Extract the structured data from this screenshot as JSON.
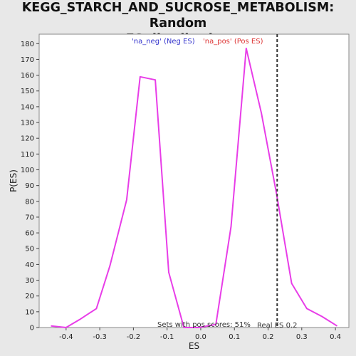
{
  "chart_data": {
    "type": "line",
    "title": "KEGG_STARCH_AND_SUCROSE_METABOLISM: Random ES distribution",
    "title_lines": [
      "KEGG_STARCH_AND_SUCROSE_METABOLISM: Random",
      "ES distribution"
    ],
    "xlabel": "ES",
    "ylabel": "P(ES)",
    "xlim": [
      -0.48,
      0.44
    ],
    "ylim": [
      0,
      186
    ],
    "xticks": [
      -0.4,
      -0.3,
      -0.2,
      -0.1,
      0.0,
      0.1,
      0.2,
      0.3,
      0.4
    ],
    "xtick_labels": [
      "-0.4",
      "-0.3",
      "-0.2",
      "-0.1",
      "0.0",
      "0.1",
      "0.2",
      "0.3",
      "0.4"
    ],
    "yticks": [
      0,
      10,
      20,
      30,
      40,
      50,
      60,
      70,
      80,
      90,
      100,
      110,
      120,
      130,
      140,
      150,
      160,
      170,
      180
    ],
    "grid": false,
    "series": [
      {
        "name": "",
        "color": "#e83de8",
        "x": [
          -0.445,
          -0.4,
          -0.36,
          -0.31,
          -0.27,
          -0.22,
          -0.18,
          -0.135,
          -0.095,
          -0.05,
          -0.005,
          0.045,
          0.09,
          0.135,
          0.18,
          0.225,
          0.27,
          0.315,
          0.36,
          0.405
        ],
        "y": [
          1,
          0,
          5,
          12,
          39,
          81,
          159,
          157,
          35,
          0,
          0,
          2,
          64,
          177,
          136,
          85,
          28,
          12,
          7,
          1
        ]
      }
    ],
    "legend": [
      {
        "label": "'na_neg' (Neg ES)",
        "color": "#3333cc"
      },
      {
        "label": "'na_pos' (Pos ES)",
        "color": "#dd3333"
      }
    ],
    "vline": {
      "x": 0.227,
      "style": "dashed",
      "color": "#333333"
    },
    "annotations": {
      "pos_scores": "Sets with pos scores: 51%",
      "real_es": "Real ES 0.2"
    }
  }
}
